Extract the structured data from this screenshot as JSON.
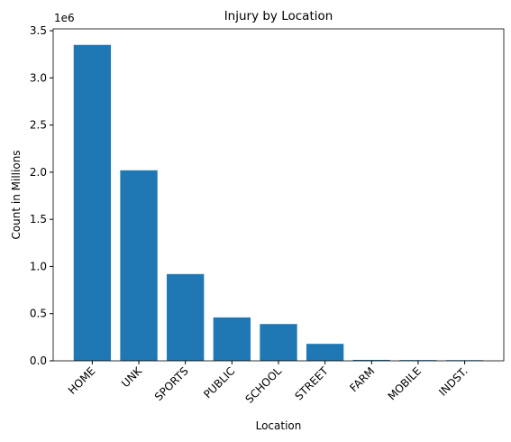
{
  "chart_data": {
    "type": "bar",
    "title": "Injury by Location",
    "x_label": "Location",
    "y_label": "Count in Millions",
    "y_offset_label": "1e6",
    "categories": [
      "HOME",
      "UNK",
      "SPORTS",
      "PUBLIC",
      "SCHOOL",
      "STREET",
      "FARM",
      "MOBILE",
      "INDST."
    ],
    "values": [
      3350000,
      2020000,
      920000,
      460000,
      390000,
      180000,
      10000,
      8000,
      7000
    ],
    "color": "#1f77b4",
    "ylim": [
      0,
      3520000
    ],
    "yticks": [
      {
        "value": 0,
        "label": "0.0"
      },
      {
        "value": 500000,
        "label": "0.5"
      },
      {
        "value": 1000000,
        "label": "1.0"
      },
      {
        "value": 1500000,
        "label": "1.5"
      },
      {
        "value": 2000000,
        "label": "2.0"
      },
      {
        "value": 2500000,
        "label": "2.5"
      },
      {
        "value": 3000000,
        "label": "3.0"
      },
      {
        "value": 3500000,
        "label": "3.5"
      }
    ],
    "grid": false
  }
}
